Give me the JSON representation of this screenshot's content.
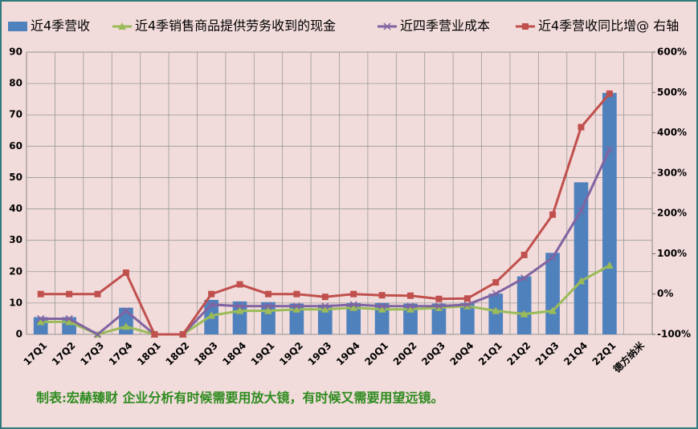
{
  "chart_data": {
    "type": "bar",
    "categories": [
      "17Q1",
      "17Q2",
      "17Q3",
      "17Q4",
      "18Q1",
      "18Q2",
      "18Q3",
      "18Q4",
      "19Q1",
      "19Q2",
      "19Q3",
      "19Q4",
      "20Q1",
      "20Q2",
      "20Q3",
      "20Q4",
      "21Q1",
      "21Q2",
      "21Q3",
      "21Q4",
      "22Q1",
      "德方纳米"
    ],
    "series": [
      {
        "name": "近4季营收",
        "type": "bar",
        "color": "#4f81bd",
        "values": [
          5.5,
          5.5,
          0,
          8.5,
          0,
          0,
          11,
          10.5,
          10.3,
          9.8,
          9.5,
          10,
          10,
          9.8,
          9.8,
          10,
          13,
          18.5,
          26,
          48.5,
          77,
          null
        ]
      },
      {
        "name": "近4季销售商品提供劳务收到的现金",
        "type": "line",
        "marker": "triangle",
        "color": "#9bbb59",
        "values": [
          4,
          4,
          0,
          2.5,
          0,
          0,
          6,
          7.5,
          7.5,
          8,
          8,
          8.5,
          8,
          8,
          8.5,
          9,
          7.5,
          6.5,
          7.5,
          17,
          22,
          null
        ]
      },
      {
        "name": "近四季营业成本",
        "type": "line",
        "marker": "x",
        "color": "#8064a2",
        "values": [
          5,
          5,
          0,
          7.5,
          0,
          0,
          9.5,
          9,
          9,
          9,
          9,
          9.5,
          9,
          9,
          9,
          9.5,
          13,
          18,
          24.5,
          39.5,
          59,
          null
        ]
      },
      {
        "name": "近4季营收同比增@ 右轴",
        "type": "line",
        "marker": "square",
        "color": "#c0504d",
        "axis": "y2",
        "values": [
          0,
          0,
          0,
          53,
          -100,
          -100,
          0,
          24,
          0,
          0,
          -7,
          0,
          -3,
          -4,
          -12,
          -11,
          29,
          97,
          197,
          414,
          497,
          null
        ]
      }
    ],
    "ylim": [
      0,
      90
    ],
    "yticks": [
      0,
      10,
      20,
      30,
      40,
      50,
      60,
      70,
      80,
      90
    ],
    "y2lim": [
      -100,
      600
    ],
    "y2ticks": [
      {
        "value": -100,
        "label": "-100%"
      },
      {
        "value": 0,
        "label": "0%"
      },
      {
        "value": 100,
        "label": "100%"
      },
      {
        "value": 200,
        "label": "200%"
      },
      {
        "value": 300,
        "label": "300%"
      },
      {
        "value": 400,
        "label": "400%"
      },
      {
        "value": 500,
        "label": "500%"
      },
      {
        "value": 600,
        "label": "600%"
      }
    ],
    "grid": true,
    "legend": "top",
    "annotation": "制表:宏赫臻财    企业分析有时候需要用放大镜，有时候又需要用望远镜。"
  }
}
